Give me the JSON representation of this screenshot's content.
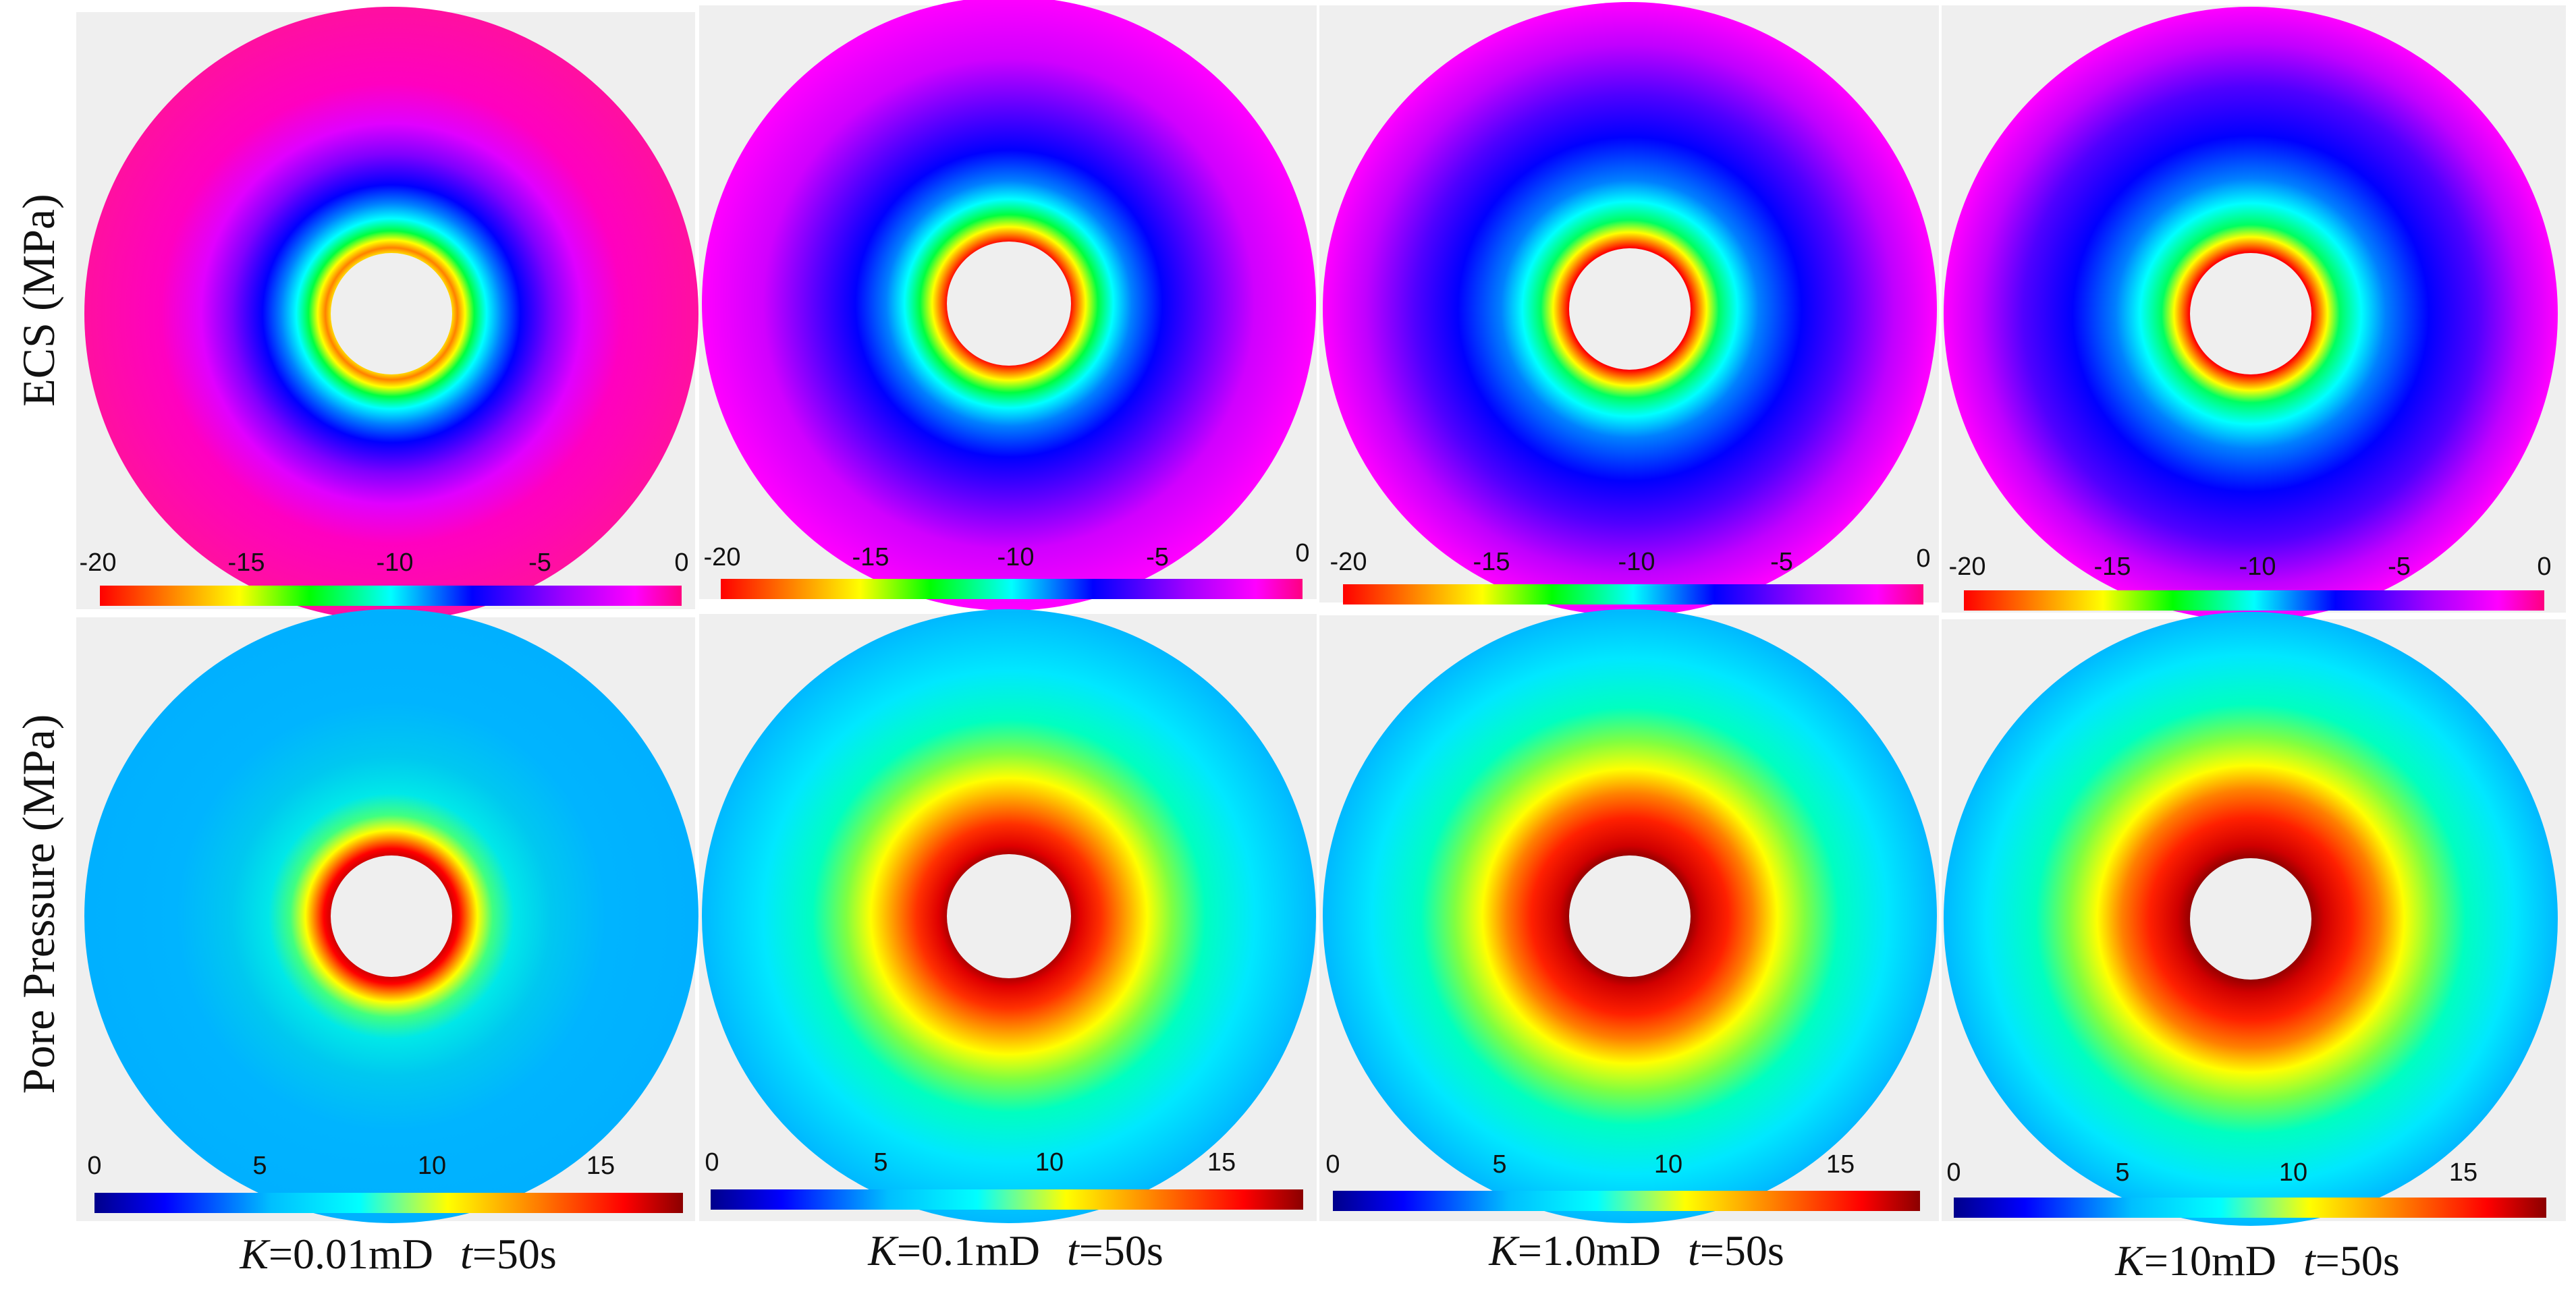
{
  "row_labels": [
    "ECS (MPa)",
    "Pore Pressure (MPa)"
  ],
  "colors": {
    "panel_background": "#efefef",
    "hole": "#efefef",
    "ecs_colormap": [
      "#ff0000",
      "#ff8000",
      "#ffff00",
      "#00ff00",
      "#00ffff",
      "#0000ff",
      "#ff00ff",
      "#ff0080"
    ],
    "pore_colormap": [
      "#00008b",
      "#0000ff",
      "#00bfff",
      "#00ffff",
      "#ffff00",
      "#ff8000",
      "#ff0000",
      "#8b0000"
    ]
  },
  "colorbars": {
    "ecs": {
      "range": [
        -20,
        0
      ],
      "ticks": [
        "-20",
        "-15",
        "-10",
        "-5",
        "0"
      ]
    },
    "pore": {
      "range": [
        0,
        18
      ],
      "ticks": [
        "0",
        "5",
        "10",
        "15"
      ]
    }
  },
  "columns": [
    {
      "k_var": "K",
      "k_value": "=0.01mD",
      "t_var": "t",
      "t_value": "=50s"
    },
    {
      "k_var": "K",
      "k_value": "=0.1mD",
      "t_var": "t",
      "t_value": "=50s"
    },
    {
      "k_var": "K",
      "k_value": "=1.0mD",
      "t_var": "t",
      "t_value": "=50s"
    },
    {
      "k_var": "K",
      "k_value": "=10mD",
      "t_var": "t",
      "t_value": "=50s"
    }
  ]
}
